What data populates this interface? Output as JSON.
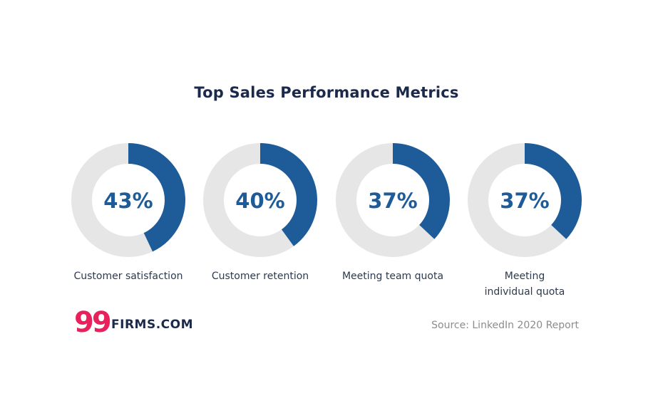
{
  "chart_data": {
    "type": "donut",
    "title": "Top Sales Performance Metrics",
    "categories": [
      "Customer satisfaction",
      "Customer retention",
      "Meeting team quota",
      "Meeting individual quota"
    ],
    "values": [
      43,
      40,
      37,
      37
    ],
    "value_labels": [
      "43%",
      "40%",
      "37%",
      "37%"
    ],
    "max": 100,
    "colors": {
      "fill": "#1e5b99",
      "track": "#e6e6e6",
      "value_text": "#1e5b99"
    }
  },
  "labels": {
    "l0": "Customer satisfaction",
    "l1": "Customer retention",
    "l2": "Meeting team quota",
    "l3a": "Meeting",
    "l3b": "individual quota"
  },
  "branding": {
    "logo_number": "99",
    "logo_text": "FIRMS.COM"
  },
  "source": "Source: LinkedIn 2020 Report"
}
